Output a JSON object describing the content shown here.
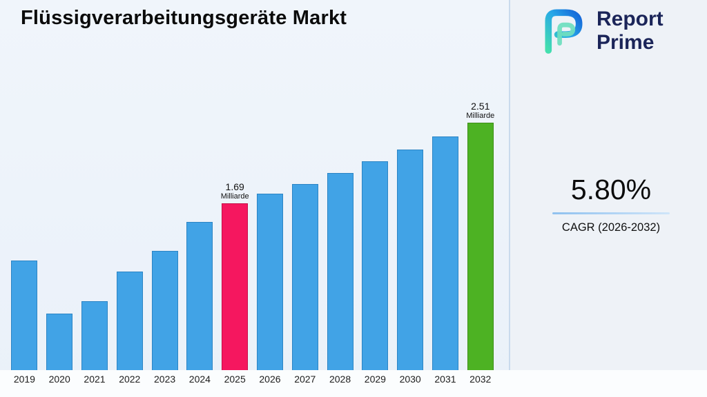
{
  "title": "Flüssigverarbeitungsgeräte Markt",
  "logo": {
    "line1": "Report",
    "line2": "Prime"
  },
  "cagr": {
    "value": "5.80%",
    "label": "CAGR (2026-2032)"
  },
  "chart_data": {
    "type": "bar",
    "title": "Flüssigverarbeitungsgeräte Markt",
    "categories": [
      "2019",
      "2020",
      "2021",
      "2022",
      "2023",
      "2024",
      "2025",
      "2026",
      "2027",
      "2028",
      "2029",
      "2030",
      "2031",
      "2032"
    ],
    "values": [
      1.11,
      0.57,
      0.7,
      1.0,
      1.21,
      1.5,
      1.69,
      1.79,
      1.89,
      2.0,
      2.12,
      2.24,
      2.37,
      2.51
    ],
    "unit": "Milliarde",
    "xlabel": "",
    "ylabel": "",
    "ylim": [
      0,
      2.6
    ],
    "grid": false,
    "legend": null,
    "colors": {
      "default_bar": "#41a3e6",
      "default_bar_border": "#2b84c4",
      "highlight_2025": "#f5175f",
      "highlight_2025_border": "#c40d47",
      "highlight_2032": "#4db223",
      "highlight_2032_border": "#3c8e17"
    },
    "annotations": [
      {
        "category": "2025",
        "value_label": "1.69",
        "unit_label": "Milliarde"
      },
      {
        "category": "2032",
        "value_label": "2.51",
        "unit_label": "Milliarde"
      }
    ]
  }
}
